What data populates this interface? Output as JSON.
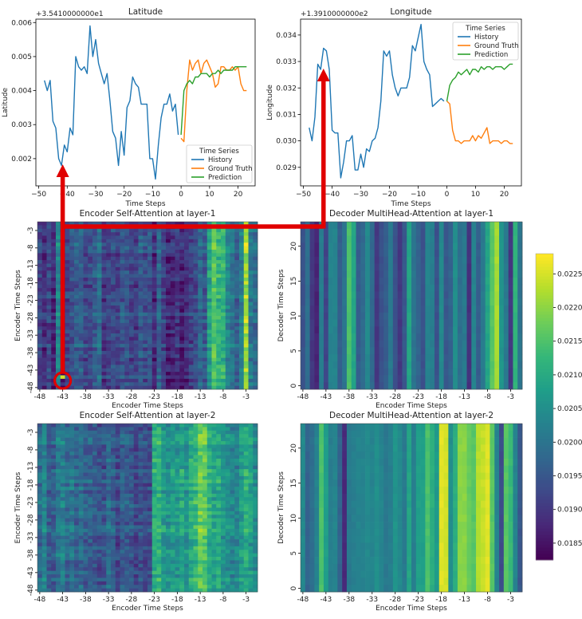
{
  "colors": {
    "history": "#1f77b4",
    "ground_truth": "#ff7f0e",
    "prediction": "#2ca02c",
    "annotation": "#e00000"
  },
  "colorbar": {
    "ticks": [
      "0.0185",
      "0.0190",
      "0.0195",
      "0.0200",
      "0.0205",
      "0.0210",
      "0.0215",
      "0.0220",
      "0.0225"
    ],
    "tick_values": [
      0.0185,
      0.019,
      0.0195,
      0.02,
      0.0205,
      0.021,
      0.0215,
      0.022,
      0.0225
    ],
    "range": [
      0.01825,
      0.0228
    ],
    "colormap": "viridis"
  },
  "chart_data": [
    {
      "type": "line",
      "title": "Latitude",
      "offset_label": "+3.5410000000e1",
      "xlabel": "Time Steps",
      "ylabel": "Latitude",
      "xlim": [
        -51,
        26
      ],
      "ylim": [
        0.0012,
        0.0061
      ],
      "xticks": [
        -50,
        -40,
        -30,
        -20,
        -10,
        0,
        10,
        20
      ],
      "xtick_labels": [
        "−50",
        "−40",
        "−30",
        "−20",
        "−10",
        "0",
        "10",
        "20"
      ],
      "yticks": [
        0.002,
        0.003,
        0.004,
        0.005,
        0.006
      ],
      "ytick_labels": [
        "0.002",
        "0.003",
        "0.004",
        "0.005",
        "0.006"
      ],
      "legend": {
        "title": "Time Series",
        "placement": "lower-right"
      },
      "series": [
        {
          "name": "History",
          "color_key": "history",
          "x": [
            -48,
            -47,
            -46,
            -45,
            -44,
            -43,
            -42,
            -41,
            -40,
            -39,
            -38,
            -37,
            -36,
            -35,
            -34,
            -33,
            -32,
            -31,
            -30,
            -29,
            -28,
            -27,
            -26,
            -25,
            -24,
            -23,
            -22,
            -21,
            -20,
            -19,
            -18,
            -17,
            -16,
            -15,
            -14,
            -13,
            -12,
            -11,
            -10,
            -9,
            -8,
            -7,
            -6,
            -5,
            -4,
            -3,
            -2,
            -1
          ],
          "y": [
            0.0043,
            0.004,
            0.0043,
            0.0031,
            0.0029,
            0.002,
            0.0018,
            0.0024,
            0.0022,
            0.0029,
            0.0027,
            0.005,
            0.0047,
            0.0046,
            0.0047,
            0.0045,
            0.0059,
            0.005,
            0.0055,
            0.0048,
            0.0045,
            0.0042,
            0.0045,
            0.0037,
            0.0028,
            0.0026,
            0.0018,
            0.0028,
            0.0021,
            0.0035,
            0.0037,
            0.0044,
            0.0042,
            0.0041,
            0.0036,
            0.0036,
            0.0036,
            0.002,
            0.002,
            0.0014,
            0.0024,
            0.0032,
            0.0036,
            0.0036,
            0.0039,
            0.0034,
            0.0036,
            0.0027
          ]
        },
        {
          "name": "Ground Truth",
          "color_key": "ground_truth",
          "x": [
            0,
            1,
            2,
            3,
            4,
            5,
            6,
            7,
            8,
            9,
            10,
            11,
            12,
            13,
            14,
            15,
            16,
            17,
            18,
            19,
            20,
            21,
            22,
            23
          ],
          "y": [
            0.0026,
            0.0025,
            0.004,
            0.0049,
            0.0046,
            0.0048,
            0.0049,
            0.0045,
            0.0048,
            0.0049,
            0.0047,
            0.0045,
            0.0041,
            0.0042,
            0.0047,
            0.0047,
            0.0046,
            0.0046,
            0.0047,
            0.0046,
            0.0047,
            0.0042,
            0.004,
            0.004
          ]
        },
        {
          "name": "Prediction",
          "color_key": "prediction",
          "x": [
            0,
            1,
            2,
            3,
            4,
            5,
            6,
            7,
            8,
            9,
            10,
            11,
            12,
            13,
            14,
            15,
            16,
            17,
            18,
            19,
            20,
            21,
            22,
            23
          ],
          "y": [
            0.0027,
            0.004,
            0.0042,
            0.0043,
            0.0042,
            0.0044,
            0.0044,
            0.0045,
            0.0045,
            0.0045,
            0.0044,
            0.0045,
            0.0045,
            0.0046,
            0.0045,
            0.0046,
            0.0046,
            0.0046,
            0.0046,
            0.0047,
            0.0047,
            0.0047,
            0.0047,
            0.0047
          ]
        }
      ]
    },
    {
      "type": "line",
      "title": "Longitude",
      "offset_label": "+1.3910000000e2",
      "xlabel": "Time Steps",
      "ylabel": "Longitude",
      "xlim": [
        -51,
        26
      ],
      "ylim": [
        0.0283,
        0.0346
      ],
      "xticks": [
        -50,
        -40,
        -30,
        -20,
        -10,
        0,
        10,
        20
      ],
      "xtick_labels": [
        "−50",
        "−40",
        "−30",
        "−20",
        "−10",
        "0",
        "10",
        "20"
      ],
      "yticks": [
        0.029,
        0.03,
        0.031,
        0.032,
        0.033,
        0.034
      ],
      "ytick_labels": [
        "0.029",
        "0.030",
        "0.031",
        "0.032",
        "0.033",
        "0.034"
      ],
      "legend": {
        "title": "Time Series",
        "placement": "top-right"
      },
      "series": [
        {
          "name": "History",
          "color_key": "history",
          "x": [
            -48,
            -47,
            -46,
            -45,
            -44,
            -43,
            -42,
            -41,
            -40,
            -39,
            -38,
            -37,
            -36,
            -35,
            -34,
            -33,
            -32,
            -31,
            -30,
            -29,
            -28,
            -27,
            -26,
            -25,
            -24,
            -23,
            -22,
            -21,
            -20,
            -19,
            -18,
            -17,
            -16,
            -15,
            -14,
            -13,
            -12,
            -11,
            -10,
            -9,
            -8,
            -7,
            -6,
            -5,
            -4,
            -3,
            -2,
            -1
          ],
          "y": [
            0.0305,
            0.03,
            0.0309,
            0.0329,
            0.0327,
            0.0335,
            0.0334,
            0.0327,
            0.0304,
            0.0303,
            0.0303,
            0.0286,
            0.0292,
            0.03,
            0.03,
            0.0302,
            0.0289,
            0.0289,
            0.0295,
            0.029,
            0.0297,
            0.0296,
            0.03,
            0.0301,
            0.0305,
            0.0315,
            0.0334,
            0.0332,
            0.0334,
            0.0325,
            0.032,
            0.0317,
            0.032,
            0.032,
            0.032,
            0.0324,
            0.0336,
            0.0334,
            0.0339,
            0.0344,
            0.033,
            0.0327,
            0.0325,
            0.0313,
            0.0314,
            0.0315,
            0.0316,
            0.0315
          ]
        },
        {
          "name": "Ground Truth",
          "color_key": "ground_truth",
          "x": [
            0,
            1,
            2,
            3,
            4,
            5,
            6,
            7,
            8,
            9,
            10,
            11,
            12,
            13,
            14,
            15,
            16,
            17,
            18,
            19,
            20,
            21,
            22,
            23
          ],
          "y": [
            0.0315,
            0.0314,
            0.0304,
            0.03,
            0.03,
            0.0299,
            0.03,
            0.03,
            0.03,
            0.0302,
            0.03,
            0.0302,
            0.0301,
            0.0303,
            0.0305,
            0.0299,
            0.03,
            0.03,
            0.03,
            0.0299,
            0.03,
            0.03,
            0.0299,
            0.0299
          ]
        },
        {
          "name": "Prediction",
          "color_key": "prediction",
          "x": [
            0,
            1,
            2,
            3,
            4,
            5,
            6,
            7,
            8,
            9,
            10,
            11,
            12,
            13,
            14,
            15,
            16,
            17,
            18,
            19,
            20,
            21,
            22,
            23
          ],
          "y": [
            0.0315,
            0.0321,
            0.0323,
            0.0324,
            0.0326,
            0.0325,
            0.0326,
            0.0327,
            0.0325,
            0.0327,
            0.0327,
            0.0326,
            0.0328,
            0.0327,
            0.0328,
            0.0328,
            0.0327,
            0.0328,
            0.0328,
            0.0328,
            0.0327,
            0.0328,
            0.0329,
            0.0329
          ]
        }
      ]
    },
    {
      "type": "heatmap",
      "title": "Encoder Self-Attention at layer-1",
      "xlabel": "Encoder Time Steps",
      "ylabel": "Encoder Time Steps",
      "x_range": [
        -48,
        -1
      ],
      "y_range": [
        -48,
        -1
      ],
      "y_direction": "top-to-bottom descending",
      "xtick_labels": [
        "-48",
        "-43",
        "-38",
        "-33",
        "-28",
        "-23",
        "-18",
        "-13",
        "-8",
        "-3"
      ],
      "ytick_labels": [
        "-3",
        "-8",
        "-13",
        "-18",
        "-23",
        "-28",
        "-33",
        "-38",
        "-43",
        "-48"
      ],
      "column_means": [
        0.0192,
        0.0189,
        0.0192,
        0.0188,
        0.0203,
        0.0187,
        0.0192,
        0.0194,
        0.0196,
        0.0196,
        0.0192,
        0.0193,
        0.0195,
        0.0199,
        0.019,
        0.0192,
        0.0193,
        0.0192,
        0.0195,
        0.0194,
        0.0192,
        0.0191,
        0.0196,
        0.0193,
        0.0195,
        0.0188,
        0.0197,
        0.0192,
        0.0187,
        0.0188,
        0.019,
        0.0187,
        0.0189,
        0.0191,
        0.0193,
        0.0198,
        0.0195,
        0.0208,
        0.0216,
        0.0212,
        0.0212,
        0.0203,
        0.02,
        0.0197,
        0.0202,
        0.0222,
        0.0201,
        0.0198
      ],
      "peak": {
        "x": -43,
        "y": -45,
        "value": 0.0225
      }
    },
    {
      "type": "heatmap",
      "title": "Decoder MultiHead-Attention at layer-1",
      "xlabel": "Encoder Time Steps",
      "ylabel": "Decoder Time Steps",
      "x_range": [
        -48,
        -1
      ],
      "y_range": [
        0,
        23
      ],
      "y_direction": "bottom-to-top ascending",
      "xtick_labels": [
        "-48",
        "-43",
        "-38",
        "-33",
        "-28",
        "-23",
        "-18",
        "-13",
        "-8",
        "-3"
      ],
      "ytick_labels": [
        "0",
        "5",
        "10",
        "15",
        "20"
      ],
      "column_means": [
        0.0194,
        0.0199,
        0.019,
        0.0187,
        0.0202,
        0.0192,
        0.0203,
        0.0203,
        0.0196,
        0.02,
        0.0215,
        0.0209,
        0.0196,
        0.0198,
        0.0204,
        0.0198,
        0.019,
        0.0194,
        0.0196,
        0.0201,
        0.0194,
        0.019,
        0.0195,
        0.0209,
        0.02,
        0.0197,
        0.0194,
        0.0203,
        0.0202,
        0.0194,
        0.0204,
        0.0195,
        0.0197,
        0.0205,
        0.0199,
        0.0201,
        0.0189,
        0.0203,
        0.0196,
        0.0201,
        0.0209,
        0.0216,
        0.0222,
        0.0206,
        0.0201,
        0.019,
        0.0212,
        0.02
      ]
    },
    {
      "type": "heatmap",
      "title": "Encoder Self-Attention at layer-2",
      "xlabel": "Encoder Time Steps",
      "ylabel": "Encoder Time Steps",
      "x_range": [
        -48,
        -1
      ],
      "y_range": [
        -48,
        -1
      ],
      "y_direction": "top-to-bottom descending",
      "xtick_labels": [
        "-48",
        "-43",
        "-38",
        "-33",
        "-28",
        "-23",
        "-18",
        "-13",
        "-8",
        "-3"
      ],
      "ytick_labels": [
        "-3",
        "-8",
        "-13",
        "-18",
        "-23",
        "-28",
        "-33",
        "-38",
        "-43",
        "-48"
      ],
      "column_means": [
        0.0199,
        0.0203,
        0.0196,
        0.0196,
        0.0201,
        0.0202,
        0.0198,
        0.02,
        0.0197,
        0.0199,
        0.0196,
        0.0197,
        0.0196,
        0.0194,
        0.0194,
        0.0199,
        0.0196,
        0.0193,
        0.0196,
        0.0196,
        0.0195,
        0.0192,
        0.0194,
        0.0193,
        0.0193,
        0.0211,
        0.0212,
        0.0207,
        0.0205,
        0.0207,
        0.0206,
        0.0209,
        0.0206,
        0.0211,
        0.0213,
        0.0217,
        0.0217,
        0.0211,
        0.0208,
        0.021,
        0.0206,
        0.0205,
        0.0203,
        0.0203,
        0.0207,
        0.0211,
        0.0208,
        0.0204
      ]
    },
    {
      "type": "heatmap",
      "title": "Decoder MultiHead-Attention at layer-2",
      "xlabel": "Encoder Time Steps",
      "ylabel": "Decoder Time Steps",
      "x_range": [
        -48,
        -1
      ],
      "y_range": [
        0,
        23
      ],
      "y_direction": "bottom-to-top ascending",
      "xtick_labels": [
        "-48",
        "-43",
        "-38",
        "-33",
        "-28",
        "-23",
        "-18",
        "-13",
        "-8",
        "-3"
      ],
      "ytick_labels": [
        "0",
        "5",
        "10",
        "15",
        "20"
      ],
      "column_means": [
        0.0204,
        0.0197,
        0.0199,
        0.0203,
        0.0215,
        0.0208,
        0.0202,
        0.0203,
        0.0197,
        0.0188,
        0.0201,
        0.0202,
        0.0203,
        0.0203,
        0.0204,
        0.0203,
        0.0205,
        0.0203,
        0.0201,
        0.0202,
        0.0206,
        0.0204,
        0.0201,
        0.0209,
        0.0202,
        0.0208,
        0.0208,
        0.0215,
        0.0211,
        0.0207,
        0.0226,
        0.0225,
        0.0205,
        0.0211,
        0.022,
        0.022,
        0.0217,
        0.0216,
        0.0223,
        0.0224,
        0.0226,
        0.0216,
        0.0203,
        0.0193,
        0.0216,
        0.0213,
        0.0203,
        0.0195
      ]
    }
  ]
}
